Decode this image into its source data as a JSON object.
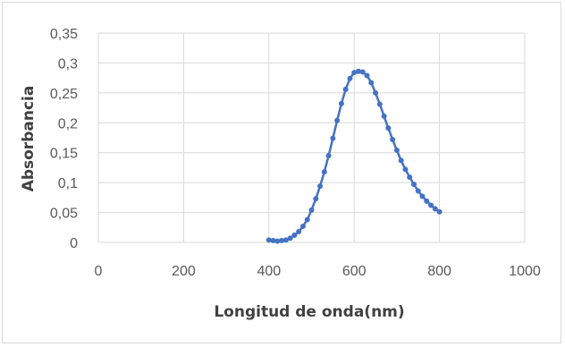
{
  "chart_data": {
    "type": "scatter",
    "title": "",
    "xlabel": "Longitud de onda(nm)",
    "ylabel": "Absorbancia",
    "xlim": [
      0,
      1000
    ],
    "ylim": [
      0,
      0.35
    ],
    "x_ticks": [
      "0",
      "200",
      "400",
      "600",
      "800",
      "1000"
    ],
    "y_ticks": [
      "0",
      "0,05",
      "0,1",
      "0,15",
      "0,2",
      "0,25",
      "0,3",
      "0,35"
    ],
    "grid": true,
    "legend": "none",
    "series_color": "#4472c4",
    "series": [
      {
        "x": [
          400,
          410,
          420,
          430,
          440,
          450,
          460,
          470,
          480,
          490,
          500,
          510,
          520,
          530,
          540,
          550,
          560,
          570,
          580,
          590,
          600,
          610,
          620,
          630,
          640,
          650,
          660,
          670,
          680,
          690,
          700,
          710,
          720,
          730,
          740,
          750,
          760,
          770,
          780,
          790,
          800
        ],
        "y": [
          0.004,
          0.003,
          0.002,
          0.003,
          0.004,
          0.007,
          0.012,
          0.018,
          0.027,
          0.038,
          0.054,
          0.073,
          0.094,
          0.118,
          0.145,
          0.174,
          0.204,
          0.232,
          0.256,
          0.274,
          0.284,
          0.286,
          0.285,
          0.279,
          0.267,
          0.25,
          0.231,
          0.211,
          0.191,
          0.172,
          0.154,
          0.137,
          0.122,
          0.109,
          0.097,
          0.086,
          0.077,
          0.069,
          0.062,
          0.056,
          0.051
        ]
      }
    ]
  }
}
